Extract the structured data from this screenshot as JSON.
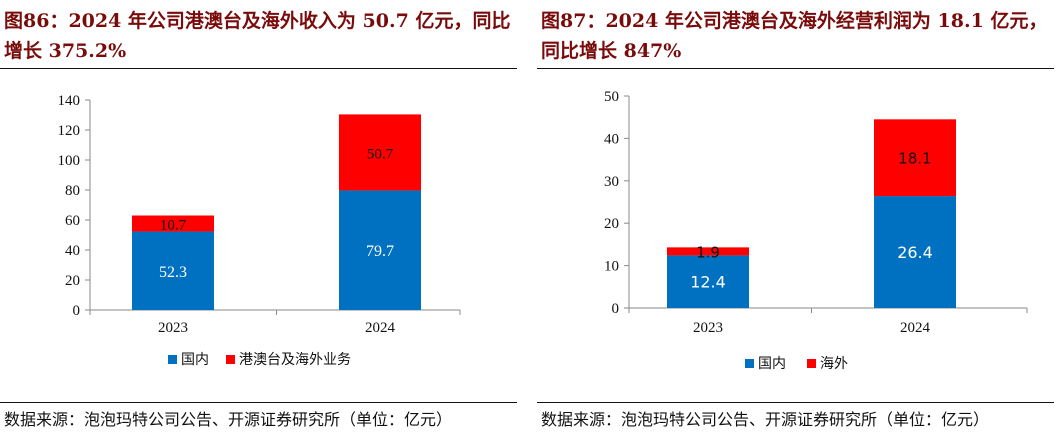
{
  "chart_data": [
    {
      "type": "bar",
      "stacked": true,
      "title": "图86：2024 年公司港澳台及海外收入为 50.7 亿元，同比增长 375.2%",
      "categories": [
        "2023",
        "2024"
      ],
      "series": [
        {
          "name": "国内",
          "values": [
            52.3,
            79.7
          ],
          "color": "#0070c0",
          "labels": [
            "52.3",
            "79.7"
          ]
        },
        {
          "name": "港澳台及海外业务",
          "values": [
            10.7,
            50.7
          ],
          "color": "#ff0000",
          "labels": [
            "10.7",
            "50.7"
          ]
        }
      ],
      "ylim": [
        0,
        140
      ],
      "yticks": [
        "0",
        "20",
        "40",
        "60",
        "80",
        "100",
        "120",
        "140"
      ],
      "legend": "bottom",
      "source": "数据来源：泡泡玛特公司公告、开源证券研究所（单位：亿元）"
    },
    {
      "type": "bar",
      "stacked": true,
      "title": "图87：2024 年公司港澳台及海外经营利润为 18.1 亿元，同比增长 847%",
      "categories": [
        "2023",
        "2024"
      ],
      "series": [
        {
          "name": "国内",
          "values": [
            12.4,
            26.4
          ],
          "color": "#0070c0",
          "labels": [
            "12.4",
            "26.4"
          ]
        },
        {
          "name": "海外",
          "values": [
            1.9,
            18.1
          ],
          "color": "#ff0000",
          "labels": [
            "1.9",
            "18.1"
          ]
        }
      ],
      "ylim": [
        0,
        50
      ],
      "yticks": [
        "0",
        "10",
        "20",
        "30",
        "40",
        "50"
      ],
      "legend": "bottom",
      "source": "数据来源：泡泡玛特公司公告、开源证券研究所（单位：亿元）"
    }
  ]
}
